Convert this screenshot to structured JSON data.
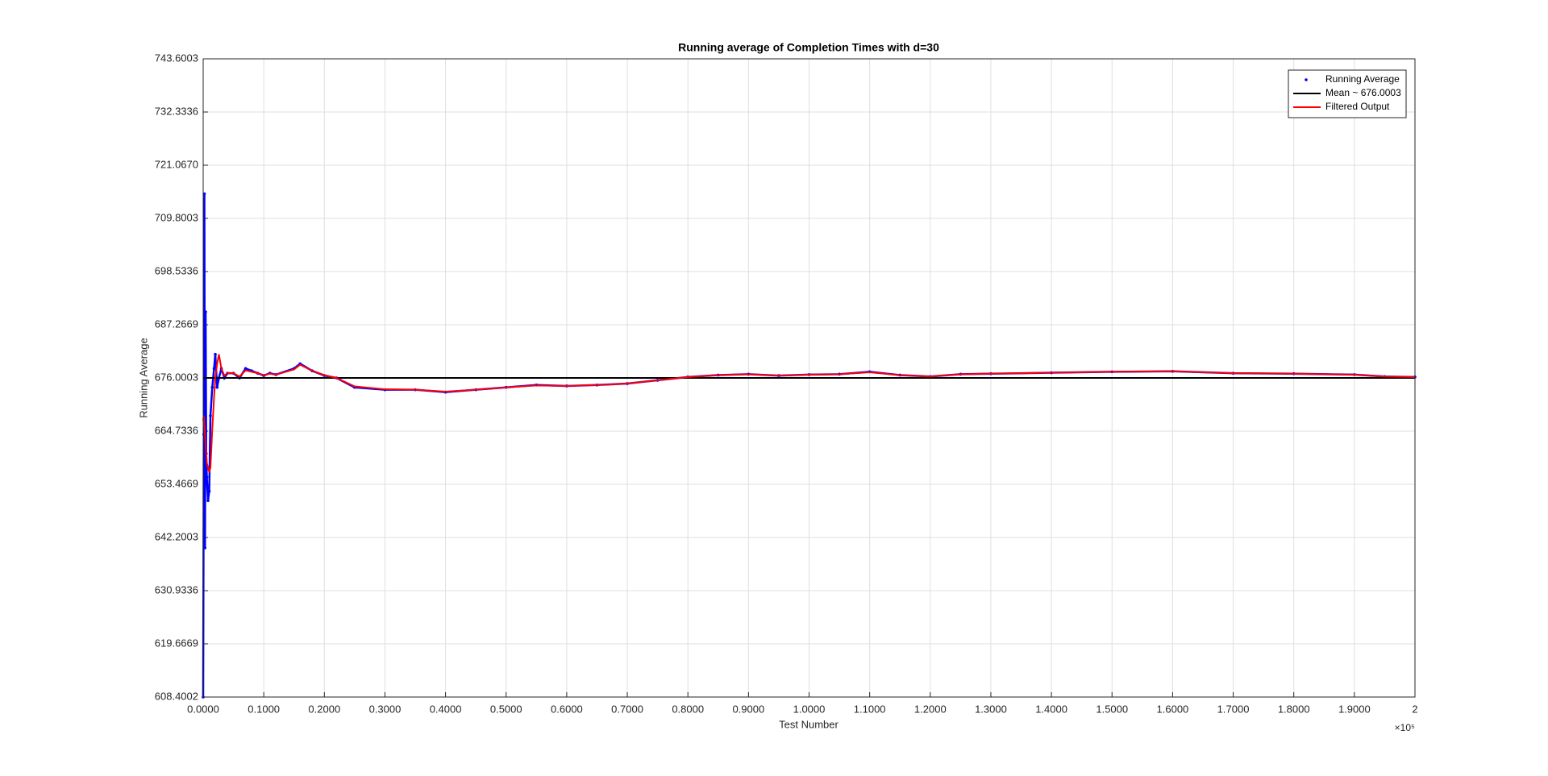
{
  "chart_data": {
    "type": "line",
    "title": "Running average of Completion Times with d=30",
    "x_label": "Test Number",
    "y_label": "Running Average",
    "x_exponent_label": "×10⁵",
    "xlim": [
      0,
      2
    ],
    "xticks": [
      {
        "value": 0,
        "label": "0.0000"
      },
      {
        "value": 0.1,
        "label": "0.1000"
      },
      {
        "value": 0.2,
        "label": "0.2000"
      },
      {
        "value": 0.3,
        "label": "0.3000"
      },
      {
        "value": 0.4,
        "label": "0.4000"
      },
      {
        "value": 0.5,
        "label": "0.5000"
      },
      {
        "value": 0.6,
        "label": "0.6000"
      },
      {
        "value": 0.7,
        "label": "0.7000"
      },
      {
        "value": 0.8,
        "label": "0.8000"
      },
      {
        "value": 0.9,
        "label": "0.9000"
      },
      {
        "value": 1,
        "label": "1.0000"
      },
      {
        "value": 1.1,
        "label": "1.1000"
      },
      {
        "value": 1.2,
        "label": "1.2000"
      },
      {
        "value": 1.3,
        "label": "1.3000"
      },
      {
        "value": 1.4,
        "label": "1.4000"
      },
      {
        "value": 1.5,
        "label": "1.5000"
      },
      {
        "value": 1.6,
        "label": "1.6000"
      },
      {
        "value": 1.7,
        "label": "1.7000"
      },
      {
        "value": 1.8,
        "label": "1.8000"
      },
      {
        "value": 1.9,
        "label": "1.9000"
      },
      2
    ],
    "ylim": [
      608.4002,
      743.6003
    ],
    "yticks": [
      608.4002,
      619.6669,
      630.9336,
      642.2003,
      653.4669,
      664.7336,
      676.0003,
      687.2669,
      698.5336,
      709.8003,
      {
        "value": 721.067,
        "label": "721.0670"
      },
      732.3336,
      743.6003
    ],
    "grid": true,
    "legend": "top-right",
    "series": [
      {
        "name": "Running Average",
        "color": "#0000ff",
        "marker": "dot",
        "x": [
          0,
          0.001,
          0.002,
          0.003,
          0.004,
          0.005,
          0.006,
          0.008,
          0.01,
          0.012,
          0.015,
          0.018,
          0.02,
          0.023,
          0.026,
          0.03,
          0.035,
          0.04,
          0.05,
          0.06,
          0.07,
          0.08,
          0.09,
          0.1,
          0.11,
          0.12,
          0.15,
          0.16,
          0.18,
          0.2,
          0.22,
          0.25,
          0.3,
          0.35,
          0.4,
          0.45,
          0.5,
          0.55,
          0.6,
          0.65,
          0.7,
          0.75,
          0.8,
          0.85,
          0.9,
          0.95,
          1,
          1.05,
          1.1,
          1.15,
          1.2,
          1.25,
          1.3,
          1.4,
          1.5,
          1.6,
          1.7,
          1.8,
          1.9,
          1.95,
          2
        ],
        "values": [
          608.4,
          664,
          715,
          640,
          690,
          660,
          655,
          650,
          652,
          668,
          674,
          678,
          681,
          674,
          676,
          678,
          676,
          677,
          677,
          676,
          678,
          677.5,
          677,
          676.5,
          677,
          676.7,
          678,
          679,
          677.5,
          676.5,
          676,
          674,
          673.5,
          673.5,
          673,
          673.5,
          674,
          674.5,
          674.3,
          674.5,
          674.8,
          675.5,
          676.2,
          676.6,
          676.8,
          676.5,
          676.7,
          676.8,
          677.3,
          676.6,
          676.3,
          676.8,
          676.9,
          677.1,
          677.3,
          677.4,
          677,
          676.9,
          676.7,
          676.3,
          676.2
        ]
      },
      {
        "name": "Mean ~ 676.0003",
        "color": "#000000",
        "marker": "none",
        "x": [
          0,
          2
        ],
        "values": [
          676.0003,
          676.0003
        ]
      },
      {
        "name": "Filtered Output",
        "color": "#ff0000",
        "marker": "none",
        "x": [
          0,
          0.001,
          0.002,
          0.003,
          0.004,
          0.005,
          0.006,
          0.008,
          0.01,
          0.012,
          0.015,
          0.018,
          0.02,
          0.023,
          0.026,
          0.03,
          0.035,
          0.04,
          0.05,
          0.06,
          0.07,
          0.08,
          0.09,
          0.1,
          0.11,
          0.12,
          0.15,
          0.16,
          0.18,
          0.2,
          0.22,
          0.25,
          0.3,
          0.35,
          0.4,
          0.45,
          0.5,
          0.55,
          0.6,
          0.65,
          0.7,
          0.75,
          0.8,
          0.85,
          0.9,
          0.95,
          1,
          1.05,
          1.1,
          1.15,
          1.2,
          1.25,
          1.3,
          1.4,
          1.5,
          1.6,
          1.7,
          1.8,
          1.9,
          1.95,
          2
        ],
        "values": [
          667,
          668,
          666,
          664,
          662,
          660,
          658,
          657,
          656,
          657,
          665,
          672,
          676,
          679,
          681,
          678,
          676.5,
          677,
          677,
          676.3,
          677.6,
          677.3,
          677,
          676.6,
          676.9,
          676.7,
          677.8,
          678.8,
          677.5,
          676.6,
          676,
          674.2,
          673.6,
          673.5,
          673.1,
          673.5,
          674,
          674.4,
          674.3,
          674.5,
          674.8,
          675.5,
          676.2,
          676.6,
          676.8,
          676.5,
          676.7,
          676.8,
          677.2,
          676.6,
          676.3,
          676.8,
          676.9,
          677.1,
          677.3,
          677.4,
          677,
          676.9,
          676.7,
          676.3,
          676.2
        ]
      }
    ]
  }
}
